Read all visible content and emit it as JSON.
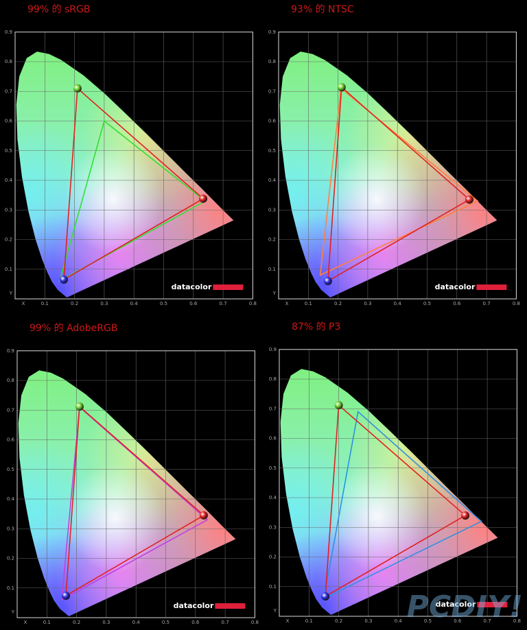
{
  "watermark": "PCDIY!",
  "chart_data": [
    {
      "type": "gamut",
      "title": "99% 的 sRGB",
      "xlim": [
        0,
        0.8
      ],
      "ylim": [
        0,
        0.9
      ],
      "xticks": [
        {
          "value": 0,
          "label": "X"
        },
        0.1,
        0.2,
        0.3,
        0.4,
        0.5,
        0.6,
        0.7,
        0.8
      ],
      "yticks": [
        {
          "value": 0,
          "label": "Y"
        },
        0.1,
        0.2,
        0.3,
        0.4,
        0.5,
        0.6,
        0.7,
        0.8,
        0.9
      ],
      "grid": true,
      "logo": "datacolor",
      "series": [
        {
          "color": "#e02020",
          "x": [
            0.633,
            0.21,
            0.164
          ],
          "values": [
            0.338,
            0.71,
            0.065
          ],
          "vertex_colors": [
            "#e02020",
            "#70d030",
            "#3030e0"
          ]
        },
        {
          "color": "#30e030",
          "x": [
            0.64,
            0.3,
            0.15
          ],
          "values": [
            0.33,
            0.6,
            0.06
          ]
        }
      ]
    },
    {
      "type": "gamut",
      "title": "93% 的 NTSC",
      "xlim": [
        0,
        0.8
      ],
      "ylim": [
        0,
        0.9
      ],
      "xticks": [
        {
          "value": 0,
          "label": "X"
        },
        0.1,
        0.2,
        0.3,
        0.4,
        0.5,
        0.6,
        0.7,
        0.8
      ],
      "yticks": [
        {
          "value": 0,
          "label": "Y"
        },
        0.1,
        0.2,
        0.3,
        0.4,
        0.5,
        0.6,
        0.7,
        0.8,
        0.9
      ],
      "grid": true,
      "logo": "datacolor",
      "series": [
        {
          "color": "#e02020",
          "x": [
            0.642,
            0.212,
            0.166
          ],
          "values": [
            0.335,
            0.714,
            0.06
          ],
          "vertex_colors": [
            "#e02020",
            "#70d030",
            "#3030e0"
          ]
        },
        {
          "color": "#ff8040",
          "x": [
            0.67,
            0.21,
            0.14
          ],
          "values": [
            0.33,
            0.71,
            0.08
          ]
        }
      ]
    },
    {
      "type": "gamut",
      "title": "99% 的 AdobeRGB",
      "xlim": [
        0,
        0.8
      ],
      "ylim": [
        0,
        0.9
      ],
      "xticks": [
        {
          "value": 0,
          "label": "X"
        },
        0.1,
        0.2,
        0.3,
        0.4,
        0.5,
        0.6,
        0.7,
        0.8
      ],
      "yticks": [
        {
          "value": 0,
          "label": "Y"
        },
        0.1,
        0.2,
        0.3,
        0.4,
        0.5,
        0.6,
        0.7,
        0.8,
        0.9
      ],
      "grid": true,
      "logo": "datacolor",
      "series": [
        {
          "color": "#e02020",
          "x": [
            0.628,
            0.21,
            0.164
          ],
          "values": [
            0.345,
            0.712,
            0.074
          ],
          "vertex_colors": [
            "#e02020",
            "#70d030",
            "#3030e0"
          ]
        },
        {
          "color": "#c040e0",
          "x": [
            0.64,
            0.21,
            0.15
          ],
          "values": [
            0.33,
            0.71,
            0.06
          ]
        }
      ]
    },
    {
      "type": "gamut",
      "title": "87% 的 P3",
      "xlim": [
        0,
        0.8
      ],
      "ylim": [
        0,
        0.9
      ],
      "xticks": [
        {
          "value": 0,
          "label": "X"
        },
        0.1,
        0.2,
        0.3,
        0.4,
        0.5,
        0.6,
        0.7,
        0.8
      ],
      "yticks": [
        {
          "value": 0,
          "label": "Y"
        },
        0.1,
        0.2,
        0.3,
        0.4,
        0.5,
        0.6,
        0.7,
        0.8,
        0.9
      ],
      "grid": true,
      "logo": "datacolor",
      "series": [
        {
          "color": "#e02020",
          "x": [
            0.626,
            0.2,
            0.155
          ],
          "values": [
            0.34,
            0.712,
            0.067
          ],
          "vertex_colors": [
            "#e02020",
            "#70d030",
            "#3030e0"
          ]
        },
        {
          "color": "#3090e0",
          "x": [
            0.68,
            0.265,
            0.15
          ],
          "values": [
            0.32,
            0.69,
            0.06
          ]
        }
      ]
    }
  ]
}
